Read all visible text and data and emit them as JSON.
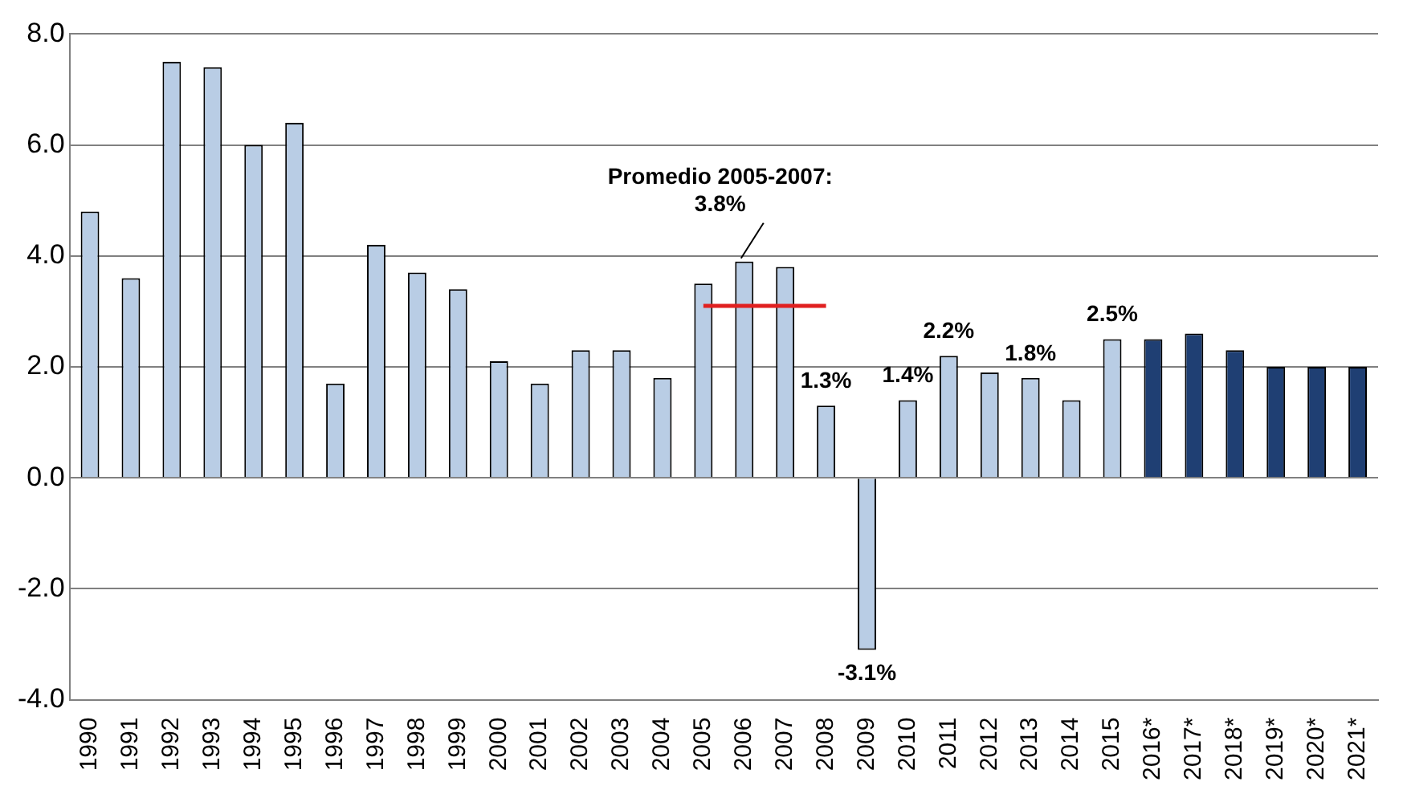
{
  "chart_data": {
    "type": "bar",
    "categories": [
      "1990",
      "1991",
      "1992",
      "1993",
      "1994",
      "1995",
      "1996",
      "1997",
      "1998",
      "1999",
      "2000",
      "2001",
      "2002",
      "2003",
      "2004",
      "2005",
      "2006",
      "2007",
      "2008",
      "2009",
      "2010",
      "2011",
      "2012",
      "2013",
      "2014",
      "2015",
      "2016*",
      "2017*",
      "2018*",
      "2019*",
      "2020*",
      "2021*"
    ],
    "series": [
      {
        "values": [
          4.8,
          3.6,
          7.5,
          7.4,
          6.0,
          6.4,
          1.7,
          4.2,
          3.7,
          3.4,
          2.1,
          1.7,
          2.3,
          2.3,
          1.8,
          3.5,
          3.9,
          3.8,
          1.3,
          -3.1,
          1.4,
          2.2,
          1.9,
          1.8,
          1.4,
          2.5,
          2.5,
          2.6,
          2.3,
          2.0,
          2.0,
          2.0
        ],
        "colors": [
          "#b9cde5",
          "#b9cde5",
          "#b9cde5",
          "#b9cde5",
          "#b9cde5",
          "#b9cde5",
          "#b9cde5",
          "#b9cde5",
          "#b9cde5",
          "#b9cde5",
          "#b9cde5",
          "#b9cde5",
          "#b9cde5",
          "#b9cde5",
          "#b9cde5",
          "#b9cde5",
          "#b9cde5",
          "#b9cde5",
          "#b9cde5",
          "#b9cde5",
          "#b9cde5",
          "#b9cde5",
          "#b9cde5",
          "#b9cde5",
          "#b9cde5",
          "#b9cde5",
          "#1f3f73",
          "#1f3f73",
          "#1f3f73",
          "#1f3f73",
          "#1f3f73",
          "#1f3f73"
        ],
        "value_labels": [
          null,
          null,
          null,
          null,
          null,
          null,
          null,
          null,
          null,
          null,
          null,
          null,
          null,
          null,
          null,
          null,
          null,
          null,
          "1.3%",
          "-3.1%",
          "1.4%",
          "2.2%",
          null,
          "1.8%",
          null,
          "2.5%",
          null,
          null,
          null,
          null,
          null,
          null
        ]
      },
      {
        "type": "line",
        "color": "#e02020",
        "values": [
          null,
          null,
          null,
          null,
          null,
          null,
          null,
          null,
          null,
          null,
          null,
          null,
          null,
          null,
          null,
          3.1,
          3.1,
          3.1,
          3.1,
          null,
          null,
          null,
          null,
          null,
          null,
          null,
          null,
          null,
          null,
          null,
          null,
          null
        ]
      }
    ],
    "ylim": [
      -4,
      8
    ],
    "yticks": [
      {
        "value": -4,
        "label": "-4.0"
      },
      {
        "value": -2,
        "label": "-2.0"
      },
      {
        "value": 0,
        "label": "0.0"
      },
      {
        "value": 2,
        "label": "2.0"
      },
      {
        "value": 4,
        "label": "4.0"
      },
      {
        "value": 6,
        "label": "6.0"
      },
      {
        "value": 8,
        "label": "8.0"
      }
    ],
    "grid": "y",
    "legend": false,
    "annotations": [
      {
        "text": "Promedio 2005-2007: 3.8%",
        "x": "2006",
        "y": 3.9
      }
    ]
  }
}
